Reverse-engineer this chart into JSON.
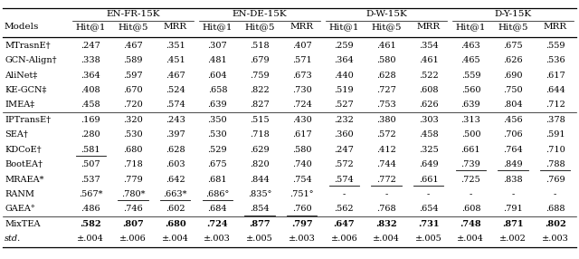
{
  "group_labels": [
    "EN-FR-15K",
    "EN-DE-15K",
    "D-W-15K",
    "D-Y-15K"
  ],
  "sub_labels": [
    "Hit@1",
    "Hit@5",
    "MRR"
  ],
  "rows": [
    {
      "model": "MTrasnE†",
      "sep_above": false,
      "italic": false,
      "vals": [
        ".247",
        ".467",
        ".351",
        ".307",
        ".518",
        ".407",
        ".259",
        ".461",
        ".354",
        ".463",
        ".675",
        ".559"
      ],
      "bold": [
        0,
        0,
        0,
        0,
        0,
        0,
        0,
        0,
        0,
        0,
        0,
        0
      ],
      "underline": [
        0,
        0,
        0,
        0,
        0,
        0,
        0,
        0,
        0,
        0,
        0,
        0
      ]
    },
    {
      "model": "GCN-Align†",
      "sep_above": false,
      "italic": false,
      "vals": [
        ".338",
        ".589",
        ".451",
        ".481",
        ".679",
        ".571",
        ".364",
        ".580",
        ".461",
        ".465",
        ".626",
        ".536"
      ],
      "bold": [
        0,
        0,
        0,
        0,
        0,
        0,
        0,
        0,
        0,
        0,
        0,
        0
      ],
      "underline": [
        0,
        0,
        0,
        0,
        0,
        0,
        0,
        0,
        0,
        0,
        0,
        0
      ]
    },
    {
      "model": "AliNet‡",
      "sep_above": false,
      "italic": false,
      "vals": [
        ".364",
        ".597",
        ".467",
        ".604",
        ".759",
        ".673",
        ".440",
        ".628",
        ".522",
        ".559",
        ".690",
        ".617"
      ],
      "bold": [
        0,
        0,
        0,
        0,
        0,
        0,
        0,
        0,
        0,
        0,
        0,
        0
      ],
      "underline": [
        0,
        0,
        0,
        0,
        0,
        0,
        0,
        0,
        0,
        0,
        0,
        0
      ]
    },
    {
      "model": "KE-GCN‡",
      "sep_above": false,
      "italic": false,
      "vals": [
        ".408",
        ".670",
        ".524",
        ".658",
        ".822",
        ".730",
        ".519",
        ".727",
        ".608",
        ".560",
        ".750",
        ".644"
      ],
      "bold": [
        0,
        0,
        0,
        0,
        0,
        0,
        0,
        0,
        0,
        0,
        0,
        0
      ],
      "underline": [
        0,
        0,
        0,
        0,
        0,
        0,
        0,
        0,
        0,
        0,
        0,
        0
      ]
    },
    {
      "model": "IMEA‡",
      "sep_above": false,
      "italic": false,
      "vals": [
        ".458",
        ".720",
        ".574",
        ".639",
        ".827",
        ".724",
        ".527",
        ".753",
        ".626",
        ".639",
        ".804",
        ".712"
      ],
      "bold": [
        0,
        0,
        0,
        0,
        0,
        0,
        0,
        0,
        0,
        0,
        0,
        0
      ],
      "underline": [
        0,
        0,
        0,
        0,
        0,
        0,
        0,
        0,
        0,
        0,
        0,
        0
      ]
    },
    {
      "model": "IPTransE†",
      "sep_above": true,
      "italic": false,
      "vals": [
        ".169",
        ".320",
        ".243",
        ".350",
        ".515",
        ".430",
        ".232",
        ".380",
        ".303",
        ".313",
        ".456",
        ".378"
      ],
      "bold": [
        0,
        0,
        0,
        0,
        0,
        0,
        0,
        0,
        0,
        0,
        0,
        0
      ],
      "underline": [
        0,
        0,
        0,
        0,
        0,
        0,
        0,
        0,
        0,
        0,
        0,
        0
      ]
    },
    {
      "model": "SEA†",
      "sep_above": false,
      "italic": false,
      "vals": [
        ".280",
        ".530",
        ".397",
        ".530",
        ".718",
        ".617",
        ".360",
        ".572",
        ".458",
        ".500",
        ".706",
        ".591"
      ],
      "bold": [
        0,
        0,
        0,
        0,
        0,
        0,
        0,
        0,
        0,
        0,
        0,
        0
      ],
      "underline": [
        0,
        0,
        0,
        0,
        0,
        0,
        0,
        0,
        0,
        0,
        0,
        0
      ]
    },
    {
      "model": "KDCoE†",
      "sep_above": false,
      "italic": false,
      "vals": [
        ".581",
        ".680",
        ".628",
        ".529",
        ".629",
        ".580",
        ".247",
        ".412",
        ".325",
        ".661",
        ".764",
        ".710"
      ],
      "bold": [
        0,
        0,
        0,
        0,
        0,
        0,
        0,
        0,
        0,
        0,
        0,
        0
      ],
      "underline": [
        1,
        0,
        0,
        0,
        0,
        0,
        0,
        0,
        0,
        0,
        0,
        0
      ]
    },
    {
      "model": "BootEA†",
      "sep_above": false,
      "italic": false,
      "vals": [
        ".507",
        ".718",
        ".603",
        ".675",
        ".820",
        ".740",
        ".572",
        ".744",
        ".649",
        ".739",
        ".849",
        ".788"
      ],
      "bold": [
        0,
        0,
        0,
        0,
        0,
        0,
        0,
        0,
        0,
        0,
        0,
        0
      ],
      "underline": [
        0,
        0,
        0,
        0,
        0,
        0,
        0,
        0,
        0,
        1,
        1,
        1
      ]
    },
    {
      "model": "MRAEA*",
      "sep_above": false,
      "italic": false,
      "vals": [
        ".537",
        ".779",
        ".642",
        ".681",
        ".844",
        ".754",
        ".574",
        ".772",
        ".661",
        ".725",
        ".838",
        ".769"
      ],
      "bold": [
        0,
        0,
        0,
        0,
        0,
        0,
        0,
        0,
        0,
        0,
        0,
        0
      ],
      "underline": [
        0,
        0,
        0,
        0,
        0,
        0,
        1,
        1,
        1,
        0,
        0,
        0
      ]
    },
    {
      "model": "RANM",
      "sep_above": false,
      "italic": false,
      "vals": [
        ".567*",
        ".780*",
        ".663*",
        ".686°",
        ".835°",
        ".751°",
        "-",
        "-",
        "-",
        "-",
        "-",
        "-"
      ],
      "bold": [
        0,
        0,
        0,
        0,
        0,
        0,
        0,
        0,
        0,
        0,
        0,
        0
      ],
      "underline": [
        0,
        1,
        1,
        1,
        0,
        0,
        0,
        0,
        0,
        0,
        0,
        0
      ]
    },
    {
      "model": "GAEA°",
      "sep_above": false,
      "italic": false,
      "vals": [
        ".486",
        ".746",
        ".602",
        ".684",
        ".854",
        ".760",
        ".562",
        ".768",
        ".654",
        ".608",
        ".791",
        ".688"
      ],
      "bold": [
        0,
        0,
        0,
        0,
        0,
        0,
        0,
        0,
        0,
        0,
        0,
        0
      ],
      "underline": [
        0,
        0,
        0,
        0,
        1,
        1,
        0,
        0,
        0,
        0,
        0,
        0
      ]
    },
    {
      "model": "MixTEA",
      "sep_above": true,
      "italic": false,
      "vals": [
        ".582",
        ".807",
        ".680",
        ".724",
        ".877",
        ".797",
        ".647",
        ".832",
        ".731",
        ".748",
        ".871",
        ".802"
      ],
      "bold": [
        1,
        1,
        1,
        1,
        1,
        1,
        1,
        1,
        1,
        1,
        1,
        1
      ],
      "underline": [
        0,
        0,
        0,
        0,
        0,
        0,
        0,
        0,
        0,
        0,
        0,
        0
      ]
    },
    {
      "model": "std.",
      "sep_above": false,
      "italic": true,
      "vals": [
        "±.004",
        "±.006",
        "±.004",
        "±.003",
        "±.005",
        "±.003",
        "±.006",
        "±.004",
        "±.005",
        "±.004",
        "±.002",
        "±.003"
      ],
      "bold": [
        0,
        0,
        0,
        0,
        0,
        0,
        0,
        0,
        0,
        0,
        0,
        0
      ],
      "underline": [
        0,
        0,
        0,
        0,
        0,
        0,
        0,
        0,
        0,
        0,
        0,
        0
      ]
    }
  ]
}
